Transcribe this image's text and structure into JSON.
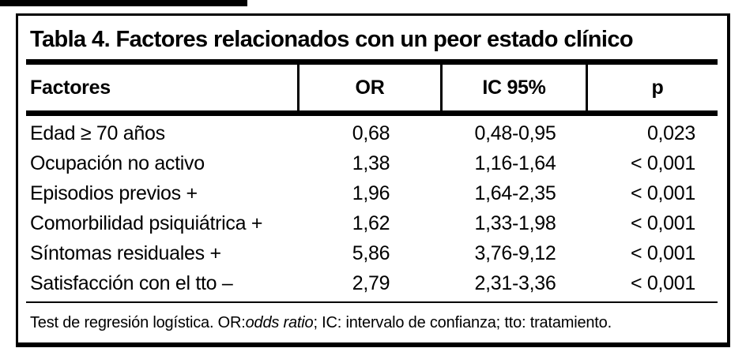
{
  "title": "Tabla 4. Factores relacionados con un peor estado clínico",
  "table": {
    "columns": [
      "Factores",
      "OR",
      "IC 95%",
      "p"
    ],
    "rows": [
      [
        "Edad ≥ 70 años",
        "0,68",
        "0,48-0,95",
        "0,023"
      ],
      [
        "Ocupación no activo",
        "1,38",
        "1,16-1,64",
        "< 0,001"
      ],
      [
        "Episodios previos +",
        "1,96",
        "1,64-2,35",
        "< 0,001"
      ],
      [
        "Comorbilidad psiquiátrica +",
        "1,62",
        "1,33-1,98",
        "< 0,001"
      ],
      [
        "Síntomas residuales +",
        "5,86",
        "3,76-9,12",
        "< 0,001"
      ],
      [
        "Satisfacción con el tto –",
        "2,79",
        "2,31-3,36",
        "< 0,001"
      ]
    ]
  },
  "footnote": {
    "prefix": "Test de regresión logística. OR: ",
    "italic": "odds ratio",
    "suffix": "; IC: intervalo de confianza; tto: tratamiento."
  },
  "colors": {
    "text": "#000000",
    "background": "#ffffff",
    "rule": "#000000"
  }
}
